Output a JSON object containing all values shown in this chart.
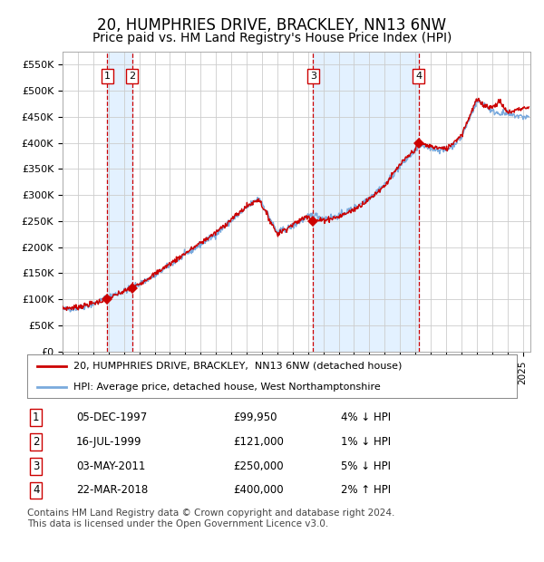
{
  "title": "20, HUMPHRIES DRIVE, BRACKLEY, NN13 6NW",
  "subtitle": "Price paid vs. HM Land Registry's House Price Index (HPI)",
  "title_fontsize": 12,
  "subtitle_fontsize": 10,
  "background_color": "#ffffff",
  "plot_bg_color": "#ffffff",
  "grid_color": "#cccccc",
  "ylim": [
    0,
    575000
  ],
  "yticks": [
    0,
    50000,
    100000,
    150000,
    200000,
    250000,
    300000,
    350000,
    400000,
    450000,
    500000,
    550000
  ],
  "ytick_labels": [
    "£0",
    "£50K",
    "£100K",
    "£150K",
    "£200K",
    "£250K",
    "£300K",
    "£350K",
    "£400K",
    "£450K",
    "£500K",
    "£550K"
  ],
  "xlim_start": 1995.0,
  "xlim_end": 2025.5,
  "transactions": [
    {
      "num": 1,
      "date_label": "05-DEC-1997",
      "year_x": 1997.92,
      "price": 99950,
      "hpi_rel": "4% ↓ HPI"
    },
    {
      "num": 2,
      "date_label": "16-JUL-1999",
      "year_x": 1999.54,
      "price": 121000,
      "hpi_rel": "1% ↓ HPI"
    },
    {
      "num": 3,
      "date_label": "03-MAY-2011",
      "year_x": 2011.33,
      "price": 250000,
      "hpi_rel": "5% ↓ HPI"
    },
    {
      "num": 4,
      "date_label": "22-MAR-2018",
      "year_x": 2018.22,
      "price": 400000,
      "hpi_rel": "2% ↑ HPI"
    }
  ],
  "red_line_color": "#cc0000",
  "blue_line_color": "#7aaadd",
  "blue_fill_color": "#ddeeff",
  "dashed_line_color": "#cc0000",
  "marker_color": "#cc0000",
  "legend_entries": [
    "20, HUMPHRIES DRIVE, BRACKLEY,  NN13 6NW (detached house)",
    "HPI: Average price, detached house, West Northamptonshire"
  ],
  "footer_text": "Contains HM Land Registry data © Crown copyright and database right 2024.\nThis data is licensed under the Open Government Licence v3.0.",
  "footnote_fontsize": 7.5
}
